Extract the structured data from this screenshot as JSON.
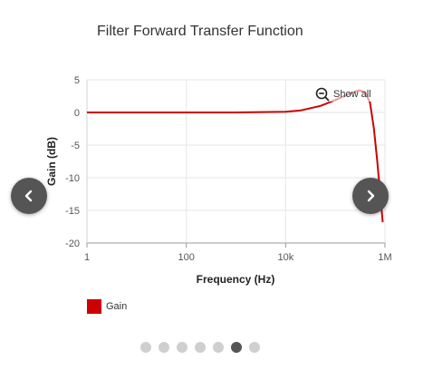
{
  "chart_data": {
    "type": "line",
    "title": "Filter Forward Transfer Function",
    "xlabel": "Frequency (Hz)",
    "ylabel": "Gain (dB)",
    "x_scale": "log",
    "xlim": [
      1,
      1000000
    ],
    "ylim": [
      -20,
      5
    ],
    "x_ticks": [
      {
        "value": 1,
        "label": "1"
      },
      {
        "value": 100,
        "label": "100"
      },
      {
        "value": 10000,
        "label": "10k"
      },
      {
        "value": 1000000,
        "label": "1M"
      }
    ],
    "y_ticks": [
      5,
      0,
      -5,
      -10,
      -15,
      -20
    ],
    "grid": true,
    "legend_position": "bottom-left",
    "series": [
      {
        "name": "Gain",
        "color": "#cc0000",
        "x": [
          1,
          10,
          100,
          1000,
          10000,
          20000,
          50000,
          100000,
          200000,
          300000,
          400000,
          500000,
          600000,
          700000,
          800000,
          900000
        ],
        "y": [
          0,
          0,
          0,
          0,
          0.1,
          0.3,
          1.0,
          1.9,
          2.9,
          3.4,
          3.1,
          1.5,
          -2.5,
          -7.5,
          -12.5,
          -16.8
        ]
      }
    ]
  },
  "controls": {
    "show_all": "Show all",
    "prev_icon": "chevron-left-icon",
    "next_icon": "chevron-right-icon",
    "zoom_icon": "zoom-out-icon"
  },
  "carousel": {
    "count": 7,
    "active_index": 5
  },
  "colors": {
    "accent": "#cc0000",
    "nav": "#555555",
    "dot": "#cfcfcf",
    "dot_active": "#555555"
  }
}
